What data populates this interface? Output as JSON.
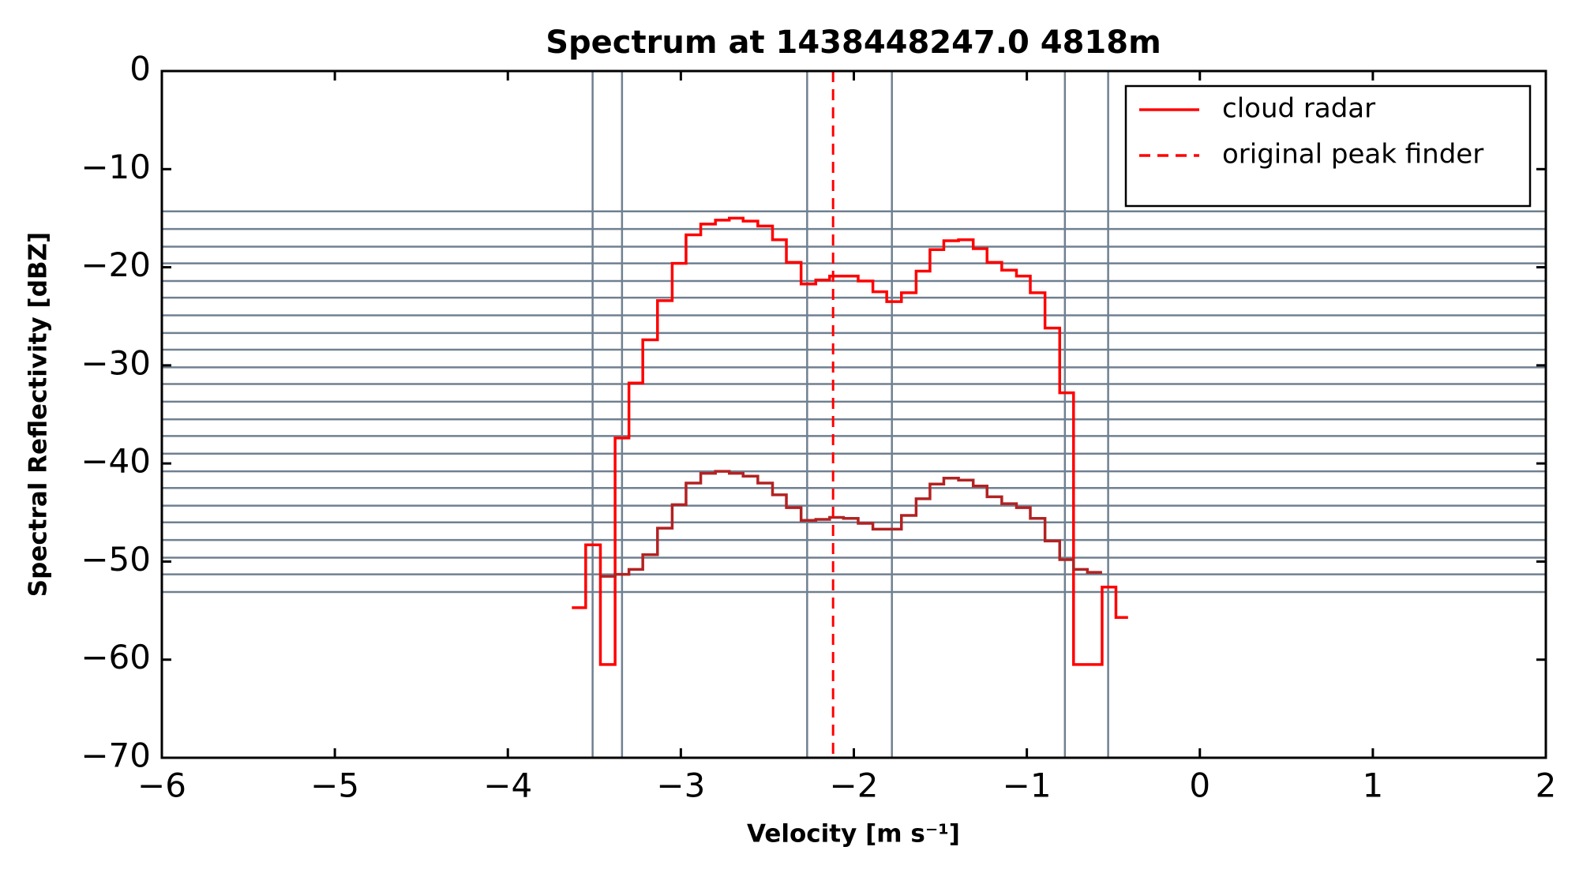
{
  "chart_data": {
    "type": "step",
    "title": "Spectrum at 1438448247.0 4818m",
    "x_label": "Velocity [m s⁻¹]",
    "y_label": "Spectral Reflectivity [dBZ]",
    "x": [
      -3.59,
      -3.51,
      -3.42,
      -3.34,
      -3.26,
      -3.18,
      -3.09,
      -3.01,
      -2.93,
      -2.84,
      -2.76,
      -2.68,
      -2.6,
      -2.51,
      -2.43,
      -2.35,
      -2.26,
      -2.18,
      -2.1,
      -2.02,
      -1.93,
      -1.85,
      -1.77,
      -1.68,
      -1.6,
      -1.52,
      -1.44,
      -1.35,
      -1.27,
      -1.19,
      -1.1,
      -1.02,
      -0.94,
      -0.85,
      -0.77,
      -0.69,
      -0.61,
      -0.52,
      -0.45
    ],
    "series": [
      {
        "name": "cloud radar",
        "color": "#ff0000",
        "values": [
          -54.7,
          -48.3,
          -60.5,
          -37.4,
          -31.8,
          -27.4,
          -23.4,
          -19.6,
          -16.7,
          -15.6,
          -15.2,
          -15.0,
          -15.3,
          -15.8,
          -17.2,
          -19.5,
          -21.7,
          -21.3,
          -20.9,
          -20.9,
          -21.4,
          -22.5,
          -23.5,
          -22.6,
          -20.4,
          -18.2,
          -17.3,
          -17.2,
          -18.1,
          -19.5,
          -20.3,
          -20.9,
          -22.6,
          -26.2,
          -32.8,
          -60.5,
          -60.5,
          -52.6,
          -55.7
        ]
      },
      {
        "color": "#b22222",
        "values": [
          null,
          null,
          -51.5,
          -51.3,
          -50.8,
          -49.3,
          -46.6,
          -44.2,
          -42.0,
          -41.0,
          -40.8,
          -41.0,
          -41.3,
          -42.0,
          -43.2,
          -44.5,
          -45.8,
          -45.7,
          -45.5,
          -45.6,
          -46.1,
          -46.7,
          -46.7,
          -45.3,
          -43.6,
          -42.1,
          -41.5,
          -41.7,
          -42.3,
          -43.4,
          -44.1,
          -44.5,
          -45.6,
          -47.9,
          -49.8,
          -50.8,
          -51.1,
          null,
          null
        ]
      }
    ],
    "peak_lines": [
      {
        "name": "original peak finder",
        "x": -2.12,
        "color": "#ff0000",
        "style": "dashed"
      }
    ],
    "vlines": [
      -3.51,
      -3.34,
      -2.27,
      -1.78,
      -0.78,
      -0.53
    ],
    "hlines": [
      -14.3,
      -16.1,
      -17.9,
      -19.6,
      -21.4,
      -23.1,
      -24.9,
      -26.7,
      -28.4,
      -30.2,
      -31.9,
      -33.7,
      -35.5,
      -37.2,
      -39.0,
      -40.8,
      -42.5,
      -44.3,
      -46.0,
      -47.8,
      -49.6,
      -51.3,
      -53.1
    ],
    "ref_line_color": "#708090",
    "xlim": [
      -6,
      2
    ],
    "ylim": [
      -70,
      0
    ],
    "xticks": [
      {
        "value": -6,
        "label": "−6"
      },
      {
        "value": -5,
        "label": "−5"
      },
      {
        "value": -4,
        "label": "−4"
      },
      {
        "value": -3,
        "label": "−3"
      },
      {
        "value": -2,
        "label": "−2"
      },
      {
        "value": -1,
        "label": "−1"
      },
      0,
      1,
      2
    ],
    "yticks": [
      {
        "value": -70,
        "label": "−70"
      },
      {
        "value": -60,
        "label": "−60"
      },
      {
        "value": -50,
        "label": "−50"
      },
      {
        "value": -40,
        "label": "−40"
      },
      {
        "value": -30,
        "label": "−30"
      },
      {
        "value": -20,
        "label": "−20"
      },
      {
        "value": -10,
        "label": "−10"
      },
      0
    ],
    "legend": "upper right"
  }
}
